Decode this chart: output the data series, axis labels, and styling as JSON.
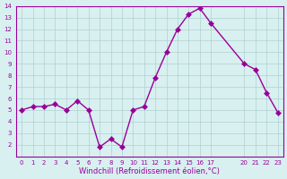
{
  "x": [
    0,
    1,
    2,
    3,
    4,
    5,
    6,
    7,
    8,
    9,
    10,
    11,
    12,
    13,
    14,
    15,
    16,
    17,
    20,
    21,
    22,
    23
  ],
  "y": [
    5.0,
    5.3,
    5.3,
    5.5,
    5.0,
    5.8,
    5.0,
    1.8,
    2.5,
    1.8,
    5.0,
    5.3,
    7.8,
    10.0,
    12.0,
    13.3,
    13.8,
    12.5,
    9.0,
    8.5,
    6.5,
    4.8
  ],
  "line_color": "#990099",
  "marker": "D",
  "marker_size": 3,
  "bg_color": "#d8f0f0",
  "grid_color": "#b0d0d0",
  "axis_label_color": "#990099",
  "tick_color": "#990099",
  "xlabel": "Windchill (Refroidissement éolien,°C)",
  "xlim": [
    -0.5,
    23.5
  ],
  "ylim": [
    1,
    14
  ],
  "yticks": [
    2,
    3,
    4,
    5,
    6,
    7,
    8,
    9,
    10,
    11,
    12,
    13,
    14
  ],
  "xticks": [
    0,
    1,
    2,
    3,
    4,
    5,
    6,
    7,
    8,
    9,
    10,
    11,
    12,
    13,
    14,
    15,
    16,
    17,
    20,
    21,
    22,
    23
  ],
  "spine_color": "#990099"
}
